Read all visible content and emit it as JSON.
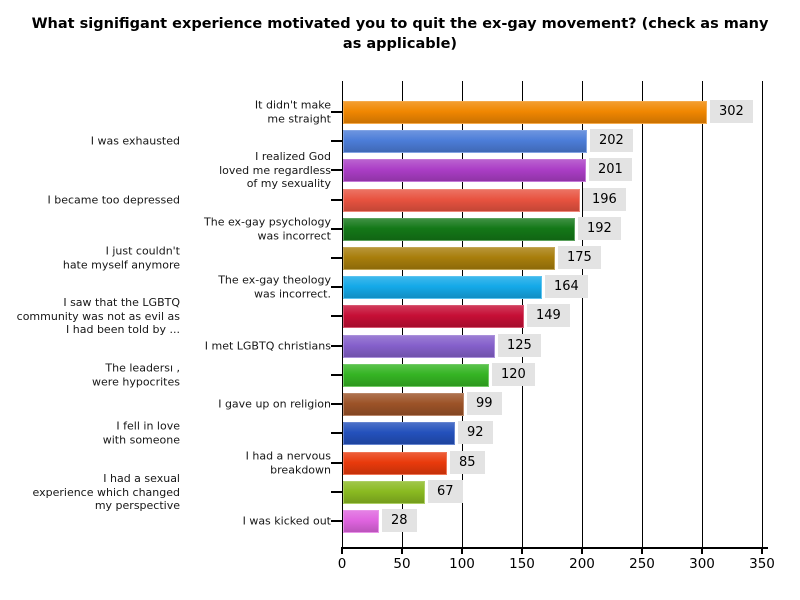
{
  "title": {
    "text": "What signifigant experience motivated you to quit the ex-gay movement? (check as many\nas applicable)"
  },
  "chart_data": {
    "type": "bar",
    "orientation": "horizontal",
    "title": "What signifigant experience motivated you to quit the ex-gay movement? (check as many as applicable)",
    "xlabel": "",
    "ylabel": "",
    "xlim": [
      0,
      350
    ],
    "x_ticks": [
      0,
      50,
      100,
      150,
      200,
      250,
      300,
      350
    ],
    "grid": true,
    "legend": "none",
    "axis_color": "#000000",
    "value_label_background": "#e3e3e3",
    "bars": [
      {
        "label": "It didn't make me straight",
        "label_lines": [
          "It didn't make",
          "me straight"
        ],
        "value": 302,
        "color": "#F08701",
        "label_column": "near"
      },
      {
        "label": "I was exhausted",
        "label_lines": [
          "I was exhausted"
        ],
        "value": 202,
        "color": "#4C7DD8",
        "label_column": "far"
      },
      {
        "label": "I realized God loved me regardless of my sexuality",
        "label_lines": [
          "I realized God",
          "loved me regardless",
          "of my sexuality"
        ],
        "value": 201,
        "color": "#AB3EC6",
        "label_column": "near"
      },
      {
        "label": "I became too depressed",
        "label_lines": [
          "I became too depressed"
        ],
        "value": 196,
        "color": "#E85340",
        "label_column": "far"
      },
      {
        "label": "The ex-gay psychology was incorrect",
        "label_lines": [
          "The ex-gay psychology",
          "was incorrect"
        ],
        "value": 192,
        "color": "#147818",
        "label_column": "near"
      },
      {
        "label": "I just couldn't hate myself anymore",
        "label_lines": [
          "I just couldn't",
          "hate myself anymore"
        ],
        "value": 175,
        "color": "#A87E0C",
        "label_column": "far"
      },
      {
        "label": "The ex-gay theology was incorrect.",
        "label_lines": [
          "The ex-gay theology",
          "was incorrect."
        ],
        "value": 164,
        "color": "#14A9E8",
        "label_column": "near"
      },
      {
        "label": "I saw that the LGBTQ community was not as evil as I had been told by ...",
        "label_lines": [
          "I saw that the LGBTQ",
          "community was not as evil as",
          "I had been told by ..."
        ],
        "value": 149,
        "color": "#C60F36",
        "label_column": "far"
      },
      {
        "label": "I met LGBTQ christians",
        "label_lines": [
          "I met LGBTQ christians"
        ],
        "value": 125,
        "color": "#8560CB",
        "label_column": "near"
      },
      {
        "label": "The leadersı , were hypocrites",
        "label_lines": [
          "The leadersı ,",
          "were hypocrites"
        ],
        "value": 120,
        "color": "#35B424",
        "label_column": "far"
      },
      {
        "label": "I gave up on religion",
        "label_lines": [
          "I gave up on religion"
        ],
        "value": 99,
        "color": "#9C5328",
        "label_column": "near"
      },
      {
        "label": "I fell in love with someone",
        "label_lines": [
          "I fell in love",
          "with someone"
        ],
        "value": 92,
        "color": "#2451BC",
        "label_column": "far"
      },
      {
        "label": "I had a nervous breakdown",
        "label_lines": [
          "I had a nervous",
          "breakdown"
        ],
        "value": 85,
        "color": "#E93A0C",
        "label_column": "near"
      },
      {
        "label": "I had a sexual experience which changed my perspective",
        "label_lines": [
          "I had a sexual",
          "experience which changed",
          "my perspective"
        ],
        "value": 67,
        "color": "#8ABA21",
        "label_column": "far"
      },
      {
        "label": "I was kicked out",
        "label_lines": [
          "I was kicked out"
        ],
        "value": 28,
        "color": "#DF64DF",
        "label_column": "near"
      }
    ]
  }
}
